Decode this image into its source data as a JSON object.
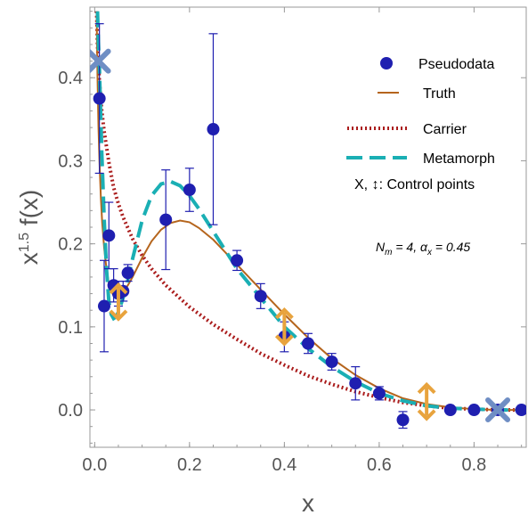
{
  "chart_data": {
    "type": "scatter",
    "xlabel": "x",
    "ylabel": "x^{1.5} f(x)",
    "xlim": [
      -0.01,
      0.91
    ],
    "ylim": [
      -0.045,
      0.485
    ],
    "x_ticks": [
      0.0,
      0.2,
      0.4,
      0.6,
      0.8
    ],
    "x_tick_labels": [
      "0.0",
      "0.2",
      "0.4",
      "0.6",
      "0.8"
    ],
    "y_ticks": [
      0.0,
      0.1,
      0.2,
      0.3,
      0.4
    ],
    "y_tick_labels": [
      "0.0",
      "0.1",
      "0.2",
      "0.3",
      "0.4"
    ],
    "grid": false,
    "legend_position": "top-right",
    "legend": [
      {
        "label": "Pseudodata",
        "color": "#1F1FB0",
        "style": "marker"
      },
      {
        "label": "Truth",
        "color": "#B5651D",
        "style": "solid"
      },
      {
        "label": "Carrier",
        "color": "#AA1C1C",
        "style": "dotted"
      },
      {
        "label": "Metamorph",
        "color": "#1AAFB4",
        "style": "dashed"
      }
    ],
    "control_points_label": "X, ↕: Control points",
    "annotation": "N_m = 4, α_x = 0.45",
    "pseudodata": [
      {
        "x": 0.01,
        "y": 0.375,
        "err": 0.09
      },
      {
        "x": 0.02,
        "y": 0.125,
        "err": 0.055
      },
      {
        "x": 0.03,
        "y": 0.21,
        "err": 0.04
      },
      {
        "x": 0.04,
        "y": 0.15,
        "err": 0.02
      },
      {
        "x": 0.05,
        "y": 0.14,
        "err": 0.015
      },
      {
        "x": 0.06,
        "y": 0.143,
        "err": 0.012
      },
      {
        "x": 0.07,
        "y": 0.165,
        "err": 0.01
      },
      {
        "x": 0.15,
        "y": 0.229,
        "err": 0.06
      },
      {
        "x": 0.2,
        "y": 0.265,
        "err": 0.026
      },
      {
        "x": 0.25,
        "y": 0.338,
        "err": 0.115
      },
      {
        "x": 0.3,
        "y": 0.18,
        "err": 0.012
      },
      {
        "x": 0.35,
        "y": 0.137,
        "err": 0.015
      },
      {
        "x": 0.4,
        "y": 0.088,
        "err": 0.018
      },
      {
        "x": 0.45,
        "y": 0.08,
        "err": 0.012
      },
      {
        "x": 0.5,
        "y": 0.058,
        "err": 0.01
      },
      {
        "x": 0.55,
        "y": 0.032,
        "err": 0.02
      },
      {
        "x": 0.6,
        "y": 0.02,
        "err": 0.008
      },
      {
        "x": 0.65,
        "y": -0.012,
        "err": 0.01
      },
      {
        "x": 0.75,
        "y": 0.0,
        "err": 0.004
      },
      {
        "x": 0.8,
        "y": 0.0,
        "err": 0.003
      },
      {
        "x": 0.85,
        "y": 0.0,
        "err": 0.003
      },
      {
        "x": 0.9,
        "y": 0.0,
        "err": 0.002
      }
    ],
    "truth": {
      "x": [
        0.004,
        0.006,
        0.008,
        0.01,
        0.013,
        0.016,
        0.02,
        0.025,
        0.03,
        0.035,
        0.04,
        0.05,
        0.06,
        0.07,
        0.08,
        0.1,
        0.12,
        0.14,
        0.16,
        0.18,
        0.2,
        0.22,
        0.25,
        0.28,
        0.3,
        0.35,
        0.4,
        0.45,
        0.5,
        0.55,
        0.6,
        0.65,
        0.7,
        0.75,
        0.8,
        0.85,
        0.9
      ],
      "y": [
        0.48,
        0.4,
        0.34,
        0.3,
        0.255,
        0.225,
        0.195,
        0.17,
        0.152,
        0.142,
        0.138,
        0.137,
        0.142,
        0.15,
        0.16,
        0.183,
        0.203,
        0.217,
        0.225,
        0.228,
        0.226,
        0.219,
        0.205,
        0.187,
        0.175,
        0.145,
        0.115,
        0.087,
        0.062,
        0.042,
        0.026,
        0.014,
        0.007,
        0.003,
        0.001,
        0.0,
        0.0
      ]
    },
    "carrier": {
      "x": [
        0.004,
        0.006,
        0.008,
        0.01,
        0.015,
        0.02,
        0.03,
        0.04,
        0.05,
        0.06,
        0.08,
        0.1,
        0.12,
        0.15,
        0.2,
        0.25,
        0.3,
        0.35,
        0.4,
        0.45,
        0.5,
        0.55,
        0.6,
        0.65,
        0.7,
        0.75,
        0.8,
        0.85,
        0.9
      ],
      "y": [
        0.48,
        0.44,
        0.415,
        0.395,
        0.36,
        0.335,
        0.298,
        0.268,
        0.248,
        0.232,
        0.206,
        0.186,
        0.17,
        0.15,
        0.124,
        0.103,
        0.085,
        0.068,
        0.054,
        0.041,
        0.031,
        0.022,
        0.015,
        0.009,
        0.005,
        0.002,
        0.001,
        0.0,
        0.0
      ]
    },
    "metamorph": {
      "x": [
        0.006,
        0.008,
        0.01,
        0.012,
        0.015,
        0.02,
        0.025,
        0.03,
        0.035,
        0.04,
        0.045,
        0.05,
        0.06,
        0.07,
        0.08,
        0.1,
        0.12,
        0.14,
        0.16,
        0.18,
        0.2,
        0.22,
        0.25,
        0.28,
        0.3,
        0.35,
        0.4,
        0.45,
        0.5,
        0.55,
        0.6,
        0.65,
        0.7,
        0.75,
        0.8,
        0.85,
        0.9
      ],
      "y": [
        0.48,
        0.44,
        0.41,
        0.37,
        0.31,
        0.23,
        0.17,
        0.13,
        0.115,
        0.11,
        0.112,
        0.118,
        0.135,
        0.157,
        0.182,
        0.228,
        0.258,
        0.272,
        0.275,
        0.27,
        0.258,
        0.242,
        0.215,
        0.188,
        0.17,
        0.135,
        0.1,
        0.074,
        0.052,
        0.034,
        0.02,
        0.011,
        0.005,
        0.002,
        0.001,
        0.0,
        0.0
      ]
    },
    "control_points_x": [
      {
        "x": 0.008,
        "y": 0.42
      },
      {
        "x": 0.85,
        "y": 0.0
      }
    ],
    "control_points_arrow": [
      {
        "x": 0.05,
        "y": 0.13
      },
      {
        "x": 0.4,
        "y": 0.1
      },
      {
        "x": 0.7,
        "y": 0.01
      }
    ],
    "colors": {
      "pseudodata": "#1F1FB0",
      "truth": "#B5651D",
      "carrier": "#AA1C1C",
      "metamorph": "#1AAFB4",
      "control_x": "#6F8EC4",
      "control_arrow": "#E8A33D",
      "axis": "#999999"
    }
  }
}
